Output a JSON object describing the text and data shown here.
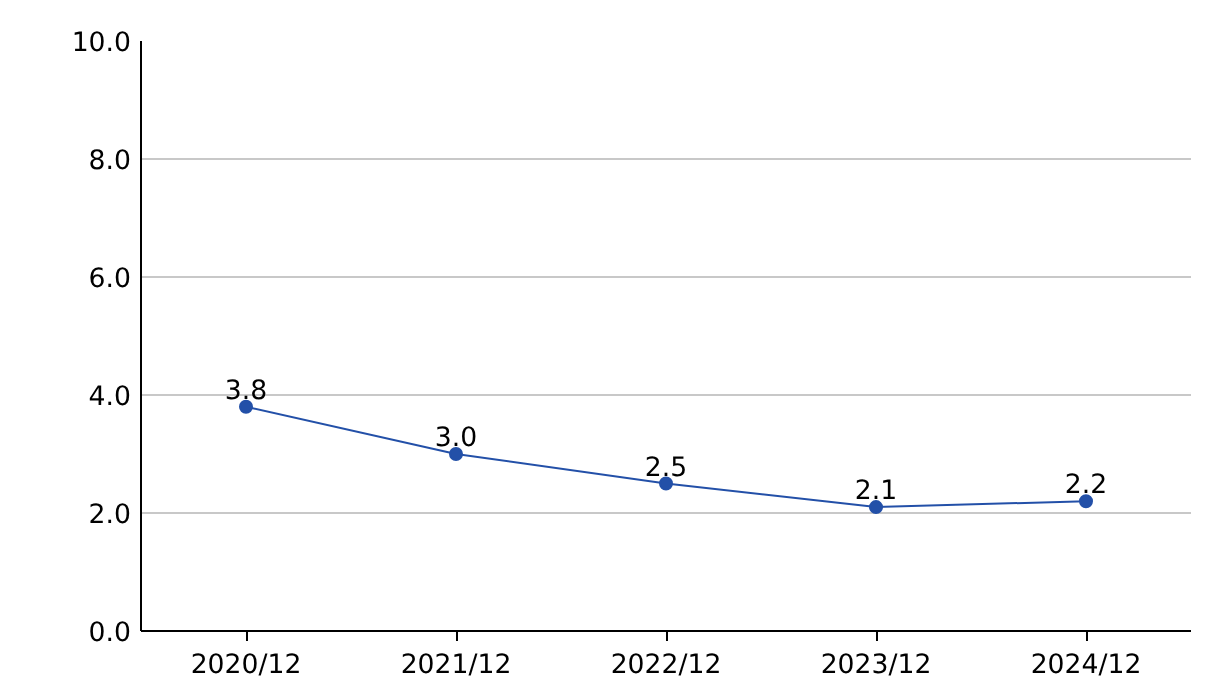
{
  "chart_data": {
    "type": "line",
    "categories": [
      "2020/12",
      "2021/12",
      "2022/12",
      "2023/12",
      "2024/12"
    ],
    "series": [
      {
        "color": "#2350a8",
        "values": [
          3.8,
          3.0,
          2.5,
          2.1,
          2.2
        ]
      }
    ],
    "ylim": [
      0,
      10
    ],
    "yticks": [
      {
        "value": 0,
        "label": "0.0"
      },
      {
        "value": 2,
        "label": "2.0"
      },
      {
        "value": 4,
        "label": "4.0"
      },
      {
        "value": 6,
        "label": "6.0"
      },
      {
        "value": 8,
        "label": "8.0"
      },
      {
        "value": 10,
        "label": "10.0"
      }
    ],
    "value_labels": [
      "3.8",
      "3.0",
      "2.5",
      "2.1",
      "2.2"
    ],
    "grid": "y",
    "marker": "circle",
    "line_style": "solid"
  }
}
